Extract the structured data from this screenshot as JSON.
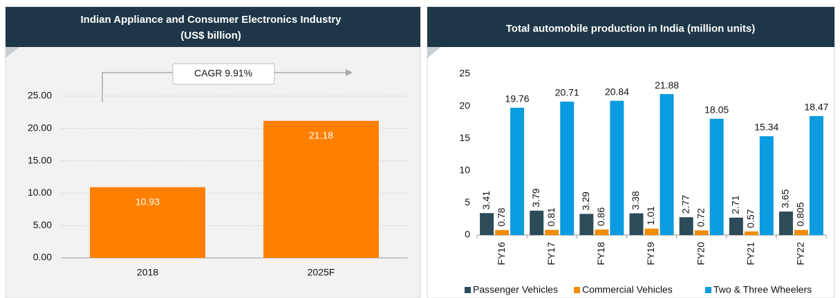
{
  "chart_data": [
    {
      "type": "bar",
      "title": "Indian Appliance and Consumer Electronics Industry",
      "subtitle": "(US$ billion)",
      "categories": [
        "2018",
        "2025F"
      ],
      "values": [
        10.93,
        21.18
      ],
      "color": "#ff8000",
      "ylim": [
        0,
        25
      ],
      "yticks": [
        {
          "value": 0,
          "label": "0.00"
        },
        {
          "value": 5,
          "label": "5.00"
        },
        {
          "value": 10,
          "label": "10.00"
        },
        {
          "value": 15,
          "label": "15.00"
        },
        {
          "value": 20,
          "label": "20.00"
        },
        {
          "value": 25,
          "label": "25.00"
        }
      ],
      "grid": true,
      "annotation": "CAGR 9.91%"
    },
    {
      "type": "grouped_bar",
      "title": "Total automobile production in India (million units)",
      "categories": [
        "FY16",
        "FY17",
        "FY18",
        "FY19",
        "FY20",
        "FY21",
        "FY22"
      ],
      "series": [
        {
          "name": "Passenger Vehicles",
          "color": "#2d4b58",
          "values": [
            3.41,
            3.79,
            3.29,
            3.38,
            2.77,
            2.71,
            3.65
          ]
        },
        {
          "name": "Commercial Vehicles",
          "color": "#f28c00",
          "values": [
            0.78,
            0.81,
            0.86,
            1.01,
            0.72,
            0.57,
            0.805
          ]
        },
        {
          "name": "Two & Three Wheelers",
          "color": "#0b9be0",
          "values": [
            19.76,
            20.71,
            20.84,
            21.88,
            18.05,
            15.34,
            18.47
          ]
        }
      ],
      "ylim": [
        0,
        25
      ],
      "yticks": [
        0,
        5,
        10,
        15,
        20,
        25
      ],
      "grid": false,
      "legend": "bottom"
    }
  ]
}
